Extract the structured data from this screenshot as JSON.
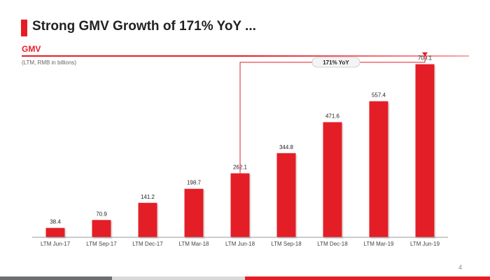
{
  "slide": {
    "title": "Strong GMV Growth of 171% YoY ...",
    "section_label": "GMV",
    "units_note": "(LTM, RMB in billions)",
    "page_number": "4"
  },
  "colors": {
    "accent": "#e41e26",
    "text": "#222222",
    "axis": "#999999"
  },
  "chart_data": {
    "type": "bar",
    "title": "",
    "xlabel": "",
    "ylabel": "",
    "categories": [
      "LTM Jun-17",
      "LTM Sep-17",
      "LTM Dec-17",
      "LTM Mar-18",
      "LTM Jun-18",
      "LTM Sep-18",
      "LTM Dec-18",
      "LTM Mar-19",
      "LTM Jun-19"
    ],
    "values": [
      38.4,
      70.9,
      141.2,
      198.7,
      262.1,
      344.8,
      471.6,
      557.4,
      709.1
    ],
    "value_labels": [
      "38.4",
      "70.9",
      "141.2",
      "198.7",
      "262.1",
      "344.8",
      "471.6",
      "557.4",
      "709.1"
    ],
    "ylim": [
      0,
      800
    ],
    "grid": false,
    "annotation": {
      "text": "171% YoY",
      "from_category": "LTM Jun-18",
      "to_category": "LTM Jun-19"
    }
  }
}
